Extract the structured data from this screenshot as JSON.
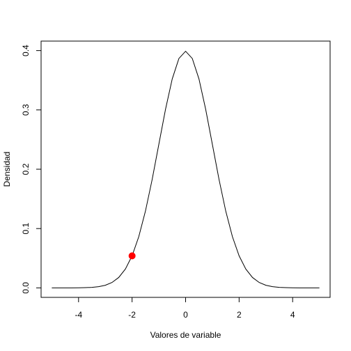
{
  "chart_data": {
    "type": "line",
    "xlabel": "Valores de variable",
    "ylabel": "Densidad",
    "x": [
      -5,
      -4.75,
      -4.5,
      -4.25,
      -4,
      -3.75,
      -3.5,
      -3.25,
      -3,
      -2.75,
      -2.5,
      -2.25,
      -2,
      -1.75,
      -1.5,
      -1.25,
      -1,
      -0.75,
      -0.5,
      -0.25,
      0,
      0.25,
      0.5,
      0.75,
      1,
      1.25,
      1.5,
      1.75,
      2,
      2.25,
      2.5,
      2.75,
      3,
      3.25,
      3.5,
      3.75,
      4,
      4.25,
      4.5,
      4.75,
      5
    ],
    "values": [
      0,
      0,
      0,
      0,
      0.0001,
      0.0004,
      0.0009,
      0.002,
      0.0044,
      0.0091,
      0.0175,
      0.0317,
      0.054,
      0.0863,
      0.1295,
      0.1826,
      0.242,
      0.3011,
      0.3521,
      0.3867,
      0.3989,
      0.3867,
      0.3521,
      0.3011,
      0.242,
      0.1826,
      0.1295,
      0.0863,
      0.054,
      0.0317,
      0.0175,
      0.0091,
      0.0044,
      0.002,
      0.0009,
      0.0004,
      0.0001,
      0,
      0,
      0,
      0
    ],
    "color": "#000000",
    "point": {
      "x": -2,
      "y": 0.054,
      "color": "#ff0000"
    },
    "xlim": [
      -5.4,
      5.4
    ],
    "ylim": [
      -0.016,
      0.416
    ],
    "xticks": [
      -4,
      -2,
      0,
      2,
      4
    ],
    "yticks": [
      {
        "value": 0,
        "label": "0.0"
      },
      {
        "value": 0.1,
        "label": "0.1"
      },
      {
        "value": 0.2,
        "label": "0.2"
      },
      {
        "value": 0.3,
        "label": "0.3"
      },
      {
        "value": 0.4,
        "label": "0.4"
      }
    ]
  }
}
